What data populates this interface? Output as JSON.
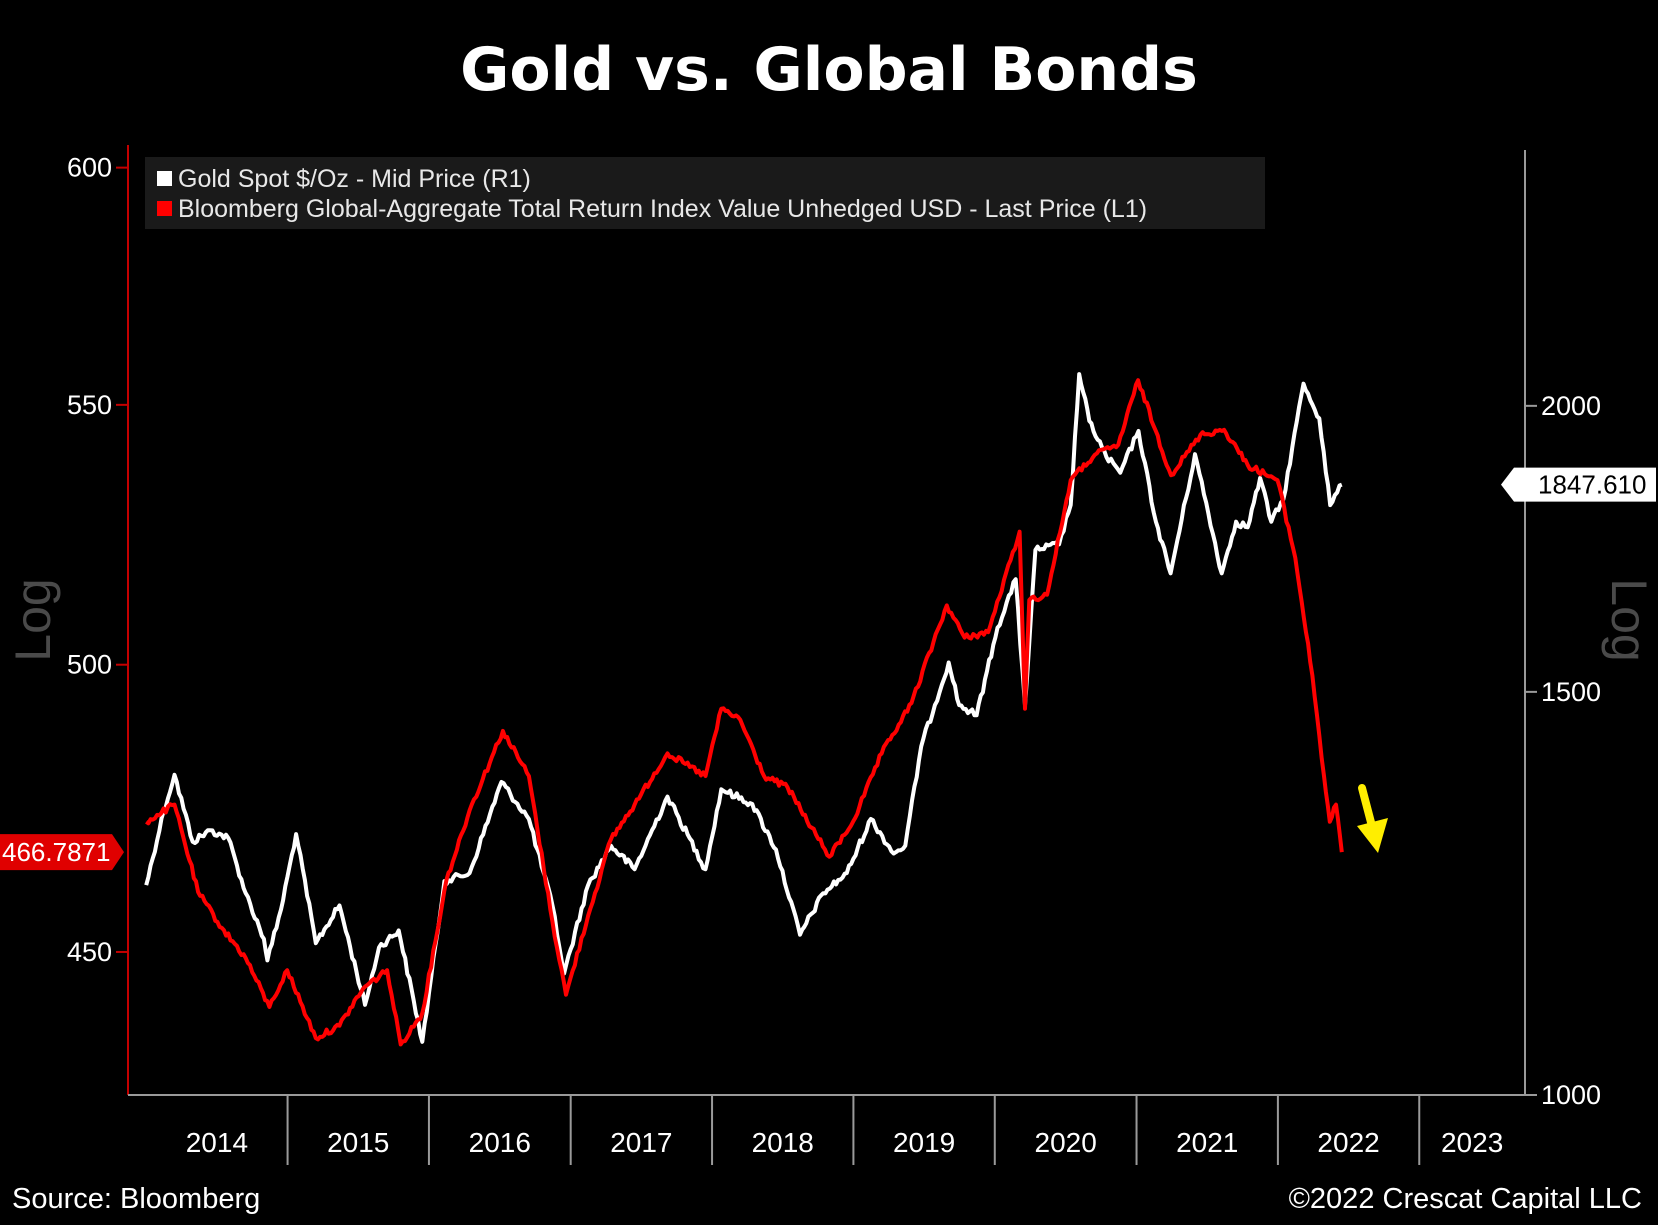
{
  "chart_data": {
    "type": "line",
    "title": "Gold vs. Global Bonds",
    "source": "Source: Bloomberg",
    "copyright": "©2022 Crescat Capital LLC",
    "x_ticks": [
      "2014",
      "2015",
      "2016",
      "2017",
      "2018",
      "2019",
      "2020",
      "2021",
      "2022",
      "2023"
    ],
    "left_axis": {
      "label": "Log",
      "scale": "log",
      "range": [
        427,
        605
      ],
      "ticks": [
        "450",
        "500",
        "550",
        "600"
      ],
      "last_value": "466.7871"
    },
    "right_axis": {
      "label": "Log",
      "scale": "log",
      "range": [
        1000,
        2600
      ],
      "ticks": [
        "1000",
        "1500",
        "2000"
      ],
      "last_value": "1847.610"
    },
    "legend": [
      {
        "name": "Gold Spot $/Oz - Mid Price (R1)",
        "color": "#ffffff"
      },
      {
        "name": "Bloomberg Global-Aggregate Total Return Index Value Unhedged USD - Last Price (L1)",
        "color": "#ff0000"
      }
    ],
    "legend_position": "top-left",
    "grid": false,
    "annotation": "yellow down arrow",
    "series": [
      {
        "name": "Gold Spot $/Oz - Mid Price (R1)",
        "axis": "right",
        "color": "#ffffff",
        "points": [
          [
            "2014-01-01",
            1235
          ],
          [
            "2014-02-15",
            1330
          ],
          [
            "2014-03-15",
            1380
          ],
          [
            "2014-05-01",
            1290
          ],
          [
            "2014-06-15",
            1305
          ],
          [
            "2014-08-01",
            1295
          ],
          [
            "2014-09-15",
            1225
          ],
          [
            "2014-11-01",
            1170
          ],
          [
            "2014-11-10",
            1145
          ],
          [
            "2014-12-15",
            1205
          ],
          [
            "2015-01-23",
            1300
          ],
          [
            "2015-03-15",
            1165
          ],
          [
            "2015-05-15",
            1210
          ],
          [
            "2015-07-20",
            1095
          ],
          [
            "2015-08-25",
            1160
          ],
          [
            "2015-10-15",
            1180
          ],
          [
            "2015-12-15",
            1055
          ],
          [
            "2016-02-10",
            1240
          ],
          [
            "2016-04-15",
            1250
          ],
          [
            "2016-07-06",
            1370
          ],
          [
            "2016-09-15",
            1320
          ],
          [
            "2016-11-15",
            1210
          ],
          [
            "2016-12-15",
            1130
          ],
          [
            "2017-02-15",
            1235
          ],
          [
            "2017-04-15",
            1285
          ],
          [
            "2017-06-15",
            1255
          ],
          [
            "2017-09-08",
            1350
          ],
          [
            "2017-12-15",
            1255
          ],
          [
            "2018-01-25",
            1360
          ],
          [
            "2018-04-15",
            1340
          ],
          [
            "2018-06-15",
            1280
          ],
          [
            "2018-08-16",
            1175
          ],
          [
            "2018-10-15",
            1225
          ],
          [
            "2018-12-15",
            1250
          ],
          [
            "2019-02-15",
            1320
          ],
          [
            "2019-04-15",
            1275
          ],
          [
            "2019-05-15",
            1285
          ],
          [
            "2019-06-25",
            1420
          ],
          [
            "2019-09-04",
            1545
          ],
          [
            "2019-10-01",
            1480
          ],
          [
            "2019-11-15",
            1465
          ],
          [
            "2020-01-08",
            1600
          ],
          [
            "2020-02-24",
            1680
          ],
          [
            "2020-03-19",
            1480
          ],
          [
            "2020-04-15",
            1730
          ],
          [
            "2020-06-15",
            1740
          ],
          [
            "2020-07-15",
            1810
          ],
          [
            "2020-08-06",
            2065
          ],
          [
            "2020-09-01",
            1970
          ],
          [
            "2020-10-15",
            1900
          ],
          [
            "2020-11-20",
            1870
          ],
          [
            "2021-01-06",
            1950
          ],
          [
            "2021-02-20",
            1780
          ],
          [
            "2021-03-30",
            1690
          ],
          [
            "2021-06-01",
            1905
          ],
          [
            "2021-08-09",
            1690
          ],
          [
            "2021-09-15",
            1780
          ],
          [
            "2021-10-15",
            1770
          ],
          [
            "2021-11-16",
            1860
          ],
          [
            "2021-12-15",
            1780
          ],
          [
            "2022-01-15",
            1820
          ],
          [
            "2022-03-08",
            2045
          ],
          [
            "2022-04-18",
            1975
          ],
          [
            "2022-05-16",
            1810
          ],
          [
            "2022-06-15",
            1847.61
          ]
        ]
      },
      {
        "name": "Bloomberg Global-Aggregate Total Return Index Value Unhedged USD - Last Price (L1)",
        "axis": "left",
        "color": "#ff0000",
        "points": [
          [
            "2014-01-01",
            472
          ],
          [
            "2014-03-15",
            475
          ],
          [
            "2014-05-15",
            460
          ],
          [
            "2014-07-15",
            454
          ],
          [
            "2014-09-15",
            449
          ],
          [
            "2014-11-15",
            441
          ],
          [
            "2014-12-31",
            447
          ],
          [
            "2015-03-15",
            436
          ],
          [
            "2015-05-15",
            438
          ],
          [
            "2015-07-15",
            444
          ],
          [
            "2015-09-15",
            447
          ],
          [
            "2015-10-20",
            435
          ],
          [
            "2015-12-15",
            440
          ],
          [
            "2016-02-15",
            462
          ],
          [
            "2016-04-15",
            474
          ],
          [
            "2016-07-10",
            488
          ],
          [
            "2016-09-15",
            480
          ],
          [
            "2016-11-15",
            455
          ],
          [
            "2016-12-20",
            443
          ],
          [
            "2017-02-15",
            456
          ],
          [
            "2017-04-15",
            469
          ],
          [
            "2017-06-15",
            475
          ],
          [
            "2017-09-08",
            484
          ],
          [
            "2017-12-15",
            480
          ],
          [
            "2018-01-25",
            492
          ],
          [
            "2018-03-15",
            490
          ],
          [
            "2018-05-15",
            480
          ],
          [
            "2018-07-15",
            478
          ],
          [
            "2018-09-15",
            471
          ],
          [
            "2018-10-31",
            466
          ],
          [
            "2018-12-31",
            472
          ],
          [
            "2019-03-15",
            484
          ],
          [
            "2019-05-31",
            493
          ],
          [
            "2019-08-30",
            511
          ],
          [
            "2019-10-15",
            505
          ],
          [
            "2019-12-15",
            506
          ],
          [
            "2020-03-05",
            525
          ],
          [
            "2020-03-19",
            492
          ],
          [
            "2020-03-30",
            512
          ],
          [
            "2020-05-15",
            513
          ],
          [
            "2020-07-15",
            535
          ],
          [
            "2020-09-15",
            540
          ],
          [
            "2020-11-15",
            542
          ],
          [
            "2021-01-05",
            555
          ],
          [
            "2021-03-31",
            536
          ],
          [
            "2021-06-15",
            544
          ],
          [
            "2021-08-15",
            545
          ],
          [
            "2021-10-15",
            538
          ],
          [
            "2021-12-31",
            535
          ],
          [
            "2022-02-15",
            520
          ],
          [
            "2022-03-31",
            498
          ],
          [
            "2022-04-30",
            480
          ],
          [
            "2022-05-15",
            472
          ],
          [
            "2022-05-31",
            475
          ],
          [
            "2022-06-15",
            466.7871
          ]
        ]
      }
    ]
  }
}
